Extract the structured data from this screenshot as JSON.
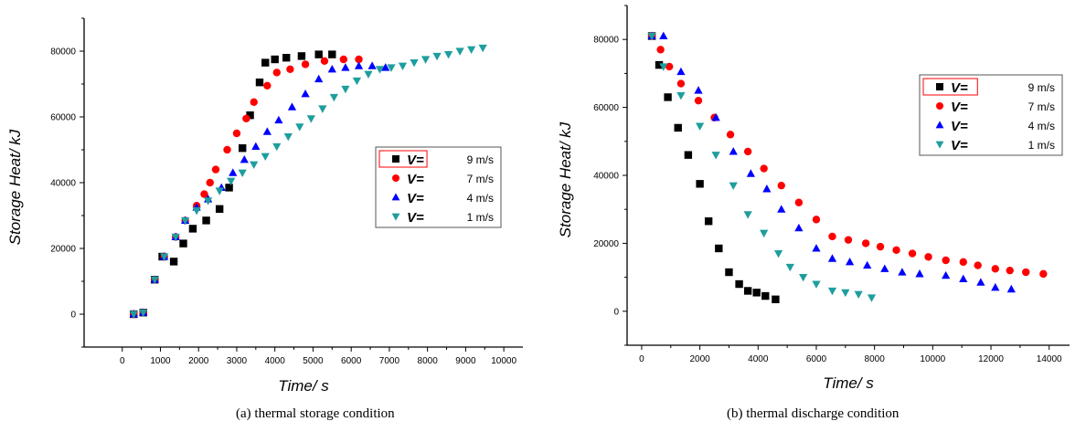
{
  "chart_data": [
    {
      "type": "scatter",
      "caption": "(a)     thermal storage condition",
      "xlabel": "Time/ s",
      "ylabel": "Storage Heat/ kJ",
      "xlim": [
        -1000,
        10500
      ],
      "ylim": [
        -10000,
        90000
      ],
      "xticks": [
        0,
        1000,
        2000,
        3000,
        4000,
        5000,
        6000,
        7000,
        8000,
        9000,
        10000
      ],
      "yticks": [
        0,
        20000,
        40000,
        60000,
        80000
      ],
      "legend_position": "right-center",
      "series": [
        {
          "name": "V= 9 m/s",
          "label_prefix": "V=",
          "label_suffix": "9 m/s",
          "marker": "square",
          "color": "#000000",
          "x": [
            300,
            550,
            850,
            1050,
            1350,
            1600,
            1850,
            2200,
            2550,
            2800,
            3150,
            3350,
            3600,
            3750,
            4000,
            4300,
            4700,
            5150,
            5500
          ],
          "y": [
            0,
            500,
            10500,
            17500,
            16000,
            21500,
            26000,
            28500,
            32000,
            38500,
            50500,
            60500,
            70500,
            76500,
            77500,
            78000,
            78500,
            79000,
            79000
          ]
        },
        {
          "name": "V= 7 m/s",
          "label_prefix": "V=",
          "label_suffix": "7 m/s",
          "marker": "circle",
          "color": "#ff0000",
          "x": [
            300,
            550,
            850,
            1100,
            1400,
            1650,
            1950,
            2150,
            2300,
            2450,
            2750,
            3000,
            3250,
            3450,
            3800,
            4050,
            4400,
            4800,
            5300,
            5800,
            6200
          ],
          "y": [
            0,
            500,
            10500,
            17500,
            23500,
            28500,
            33000,
            36500,
            40000,
            44000,
            50000,
            55000,
            59500,
            64500,
            69500,
            73500,
            74500,
            76000,
            77000,
            77500,
            77500
          ]
        },
        {
          "name": "V= 4 m/s",
          "label_prefix": "V=",
          "label_suffix": "4 m/s",
          "marker": "triangle-up",
          "color": "#0000ff",
          "x": [
            300,
            550,
            850,
            1100,
            1400,
            1650,
            1950,
            2250,
            2600,
            2900,
            3200,
            3500,
            3800,
            4100,
            4450,
            4800,
            5150,
            5500,
            5850,
            6200,
            6550,
            6900
          ],
          "y": [
            0,
            500,
            10500,
            17500,
            23500,
            28500,
            32500,
            35000,
            38500,
            43000,
            47000,
            51000,
            55500,
            59000,
            63000,
            67000,
            71500,
            74500,
            75000,
            75500,
            75500,
            75000
          ]
        },
        {
          "name": "V= 1 m/s",
          "label_prefix": "V=",
          "label_suffix": "1 m/s",
          "marker": "triangle-down",
          "color": "#1e9e9e",
          "x": [
            300,
            550,
            850,
            1100,
            1400,
            1650,
            1950,
            2250,
            2550,
            2850,
            3150,
            3450,
            3750,
            4050,
            4350,
            4650,
            4950,
            5250,
            5550,
            5850,
            6150,
            6450,
            6750,
            7050,
            7350,
            7650,
            7950,
            8250,
            8550,
            8850,
            9150,
            9450
          ],
          "y": [
            0,
            500,
            10500,
            17500,
            23500,
            28500,
            31500,
            34500,
            37500,
            40500,
            43000,
            45500,
            48000,
            51000,
            54000,
            57000,
            59500,
            62500,
            66000,
            68500,
            71000,
            73000,
            74500,
            75000,
            75500,
            76500,
            77500,
            78500,
            79000,
            80000,
            80500,
            81000
          ]
        }
      ]
    },
    {
      "type": "scatter",
      "caption": "(b) thermal discharge condition",
      "xlabel": "Time/ s",
      "ylabel": "Storage Heat/ kJ",
      "xlim": [
        -500,
        14700
      ],
      "ylim": [
        -10000,
        90000
      ],
      "xticks": [
        0,
        2000,
        4000,
        6000,
        8000,
        10000,
        12000,
        14000
      ],
      "yticks": [
        0,
        20000,
        40000,
        60000,
        80000
      ],
      "legend_position": "top-right",
      "series": [
        {
          "name": "V= 9 m/s",
          "label_prefix": "V=",
          "label_suffix": "9 m/s",
          "marker": "square",
          "color": "#000000",
          "x": [
            350,
            600,
            900,
            1250,
            1600,
            2000,
            2300,
            2650,
            3000,
            3350,
            3650,
            3950,
            4250,
            4600
          ],
          "y": [
            81000,
            72500,
            63000,
            54000,
            46000,
            37500,
            26500,
            18500,
            11500,
            8000,
            6000,
            5500,
            4500,
            3500
          ]
        },
        {
          "name": "V= 7 m/s",
          "label_prefix": "V=",
          "label_suffix": "7 m/s",
          "marker": "circle",
          "color": "#ff0000",
          "x": [
            350,
            650,
            950,
            1350,
            1950,
            2500,
            3050,
            3650,
            4200,
            4800,
            5400,
            6000,
            6550,
            7100,
            7700,
            8200,
            8750,
            9300,
            9850,
            10450,
            11050,
            11550,
            12150,
            12650,
            13200,
            13800
          ],
          "y": [
            81000,
            77000,
            72000,
            67000,
            62000,
            57000,
            52000,
            47000,
            42000,
            37000,
            32000,
            27000,
            22000,
            21000,
            20000,
            19000,
            18000,
            17000,
            16000,
            15000,
            14500,
            13500,
            12500,
            12000,
            11500,
            11000
          ]
        },
        {
          "name": "V= 4 m/s",
          "label_prefix": "V=",
          "label_suffix": "4 m/s",
          "marker": "triangle-up",
          "color": "#0000ff",
          "x": [
            350,
            750,
            1350,
            1950,
            2550,
            3150,
            3750,
            4300,
            4800,
            5400,
            6000,
            6550,
            7150,
            7750,
            8350,
            8950,
            9550,
            10450,
            11050,
            11650,
            12150,
            12700
          ],
          "y": [
            81000,
            81000,
            70500,
            65000,
            57000,
            47000,
            40500,
            36000,
            30000,
            24500,
            18500,
            15500,
            14500,
            13500,
            12500,
            11500,
            11000,
            10500,
            9500,
            8500,
            7000,
            6500
          ]
        },
        {
          "name": "V= 1 m/s",
          "label_prefix": "V=",
          "label_suffix": "1 m/s",
          "marker": "triangle-down",
          "color": "#1e9e9e",
          "x": [
            350,
            750,
            1350,
            2000,
            2550,
            3150,
            3650,
            4200,
            4700,
            5100,
            5550,
            6000,
            6550,
            7000,
            7450,
            7900
          ],
          "y": [
            81000,
            72000,
            63500,
            54500,
            46000,
            37000,
            28500,
            23000,
            17000,
            13000,
            10000,
            8000,
            6000,
            5500,
            5000,
            4000
          ]
        }
      ]
    }
  ]
}
